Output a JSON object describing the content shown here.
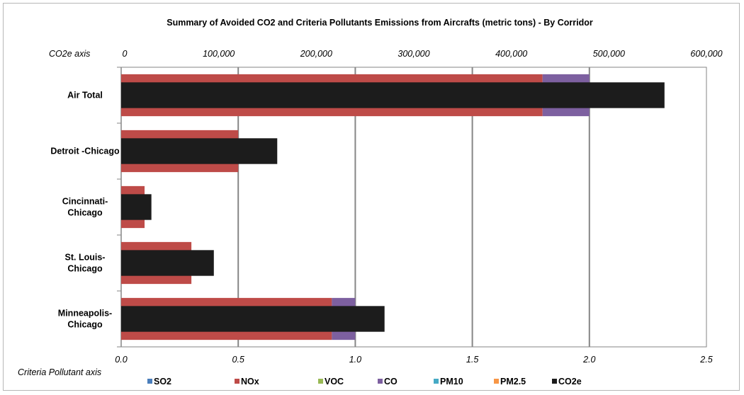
{
  "chart_data": {
    "type": "bar",
    "orientation": "horizontal",
    "stacked": true,
    "title": "Summary of Avoided CO2 and Criteria Pollutants Emissions from Aircrafts (metric tons) - By Corridor",
    "categories": [
      "Air Total",
      "Detroit -Chicago",
      "Cincinnati-Chicago",
      "St. Louis-Chicago",
      "Minneapolis-Chicago"
    ],
    "category_lines": [
      [
        "Air Total"
      ],
      [
        "Detroit -Chicago"
      ],
      [
        "Cincinnati-",
        "Chicago"
      ],
      [
        "St. Louis-",
        "Chicago"
      ],
      [
        "Minneapolis-",
        "Chicago"
      ]
    ],
    "primary_axis": {
      "label": "Criteria Pollutant axis",
      "position": "bottom",
      "range": [
        0,
        2.5
      ],
      "ticks": [
        "0.0",
        "0.5",
        "1.0",
        "1.5",
        "2.0",
        "2.5"
      ],
      "grid": true
    },
    "secondary_axis": {
      "label": "CO2e axis",
      "position": "top",
      "range": [
        0,
        600000
      ],
      "ticks": [
        "0",
        "100,000",
        "200,000",
        "300,000",
        "400,000",
        "500,000",
        "600,000"
      ]
    },
    "series": [
      {
        "name": "SO2",
        "color": "#4a7ebb",
        "axis": "primary",
        "values": [
          0,
          0,
          0,
          0,
          0
        ]
      },
      {
        "name": "NOx",
        "color": "#be4b48",
        "axis": "primary",
        "values": [
          1.8,
          0.5,
          0.1,
          0.3,
          0.9
        ]
      },
      {
        "name": "VOC",
        "color": "#98b954",
        "axis": "primary",
        "values": [
          0,
          0,
          0,
          0,
          0
        ]
      },
      {
        "name": "CO",
        "color": "#7d60a0",
        "axis": "primary",
        "values": [
          0.2,
          0,
          0,
          0,
          0.1
        ]
      },
      {
        "name": "PM10",
        "color": "#46aac5",
        "axis": "primary",
        "values": [
          0,
          0,
          0,
          0,
          0
        ]
      },
      {
        "name": "PM2.5",
        "color": "#f79646",
        "axis": "primary",
        "values": [
          0,
          0,
          0,
          0,
          0
        ]
      },
      {
        "name": "CO2e",
        "color": "#1c1c1c",
        "axis": "secondary",
        "values": [
          557000,
          160000,
          31000,
          95000,
          270000
        ]
      }
    ],
    "legend_position": "bottom"
  }
}
